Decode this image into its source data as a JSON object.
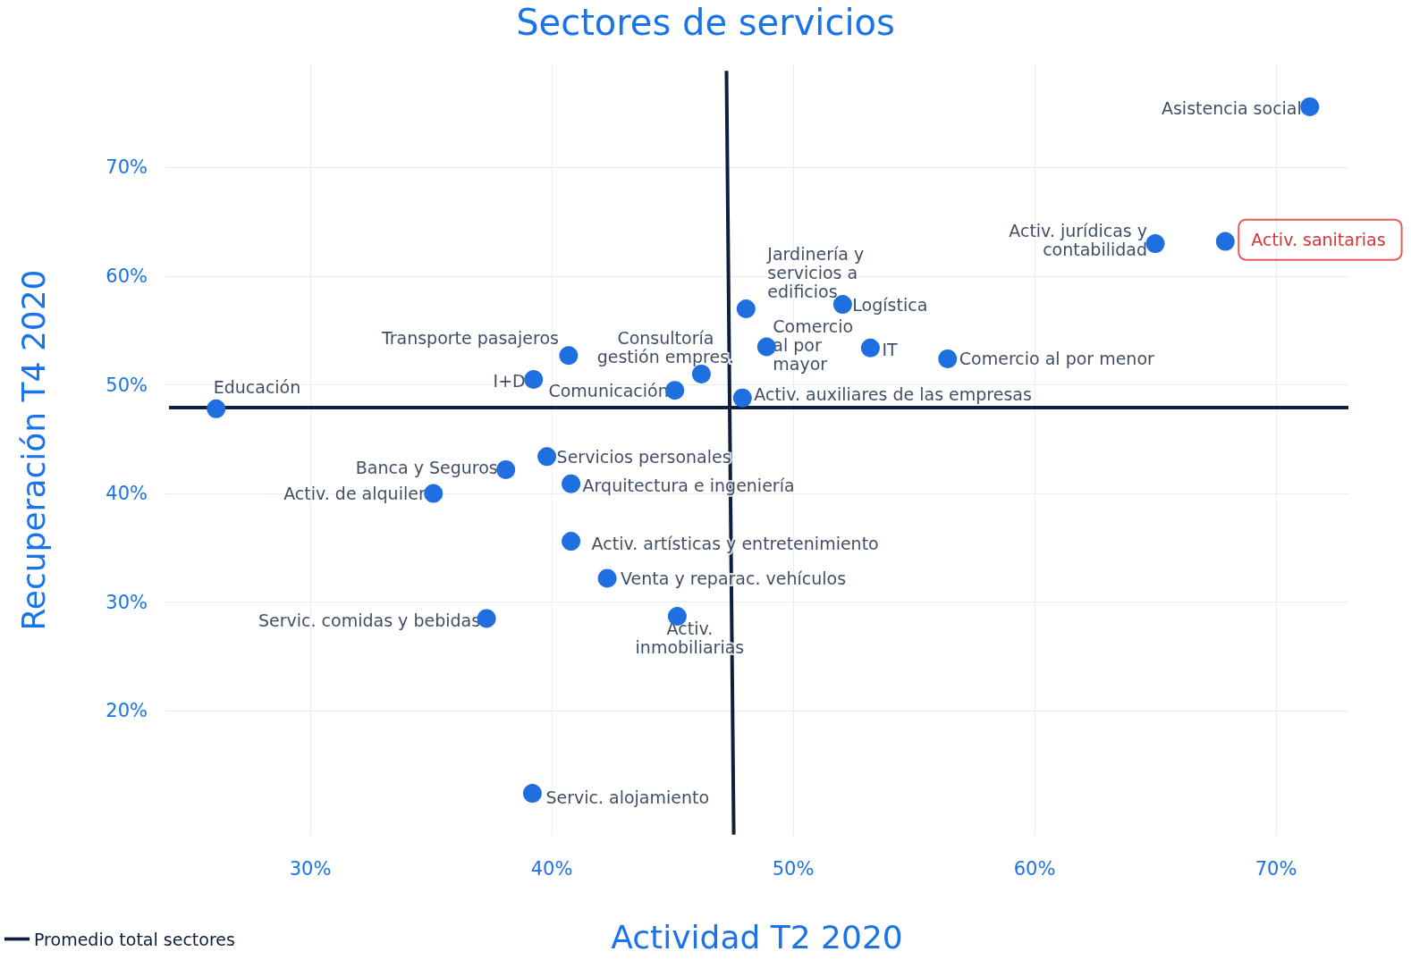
{
  "chart_data": {
    "type": "scatter",
    "title": "Sectores de servicios",
    "xlabel": "Actividad T2 2020",
    "ylabel": "Recuperación T4 2020",
    "xlim": [
      24,
      73
    ],
    "ylim": [
      8.5,
      79.5
    ],
    "xticks": [
      {
        "value": 30,
        "label": "30%"
      },
      {
        "value": 40,
        "label": "40%"
      },
      {
        "value": 50,
        "label": "50%"
      },
      {
        "value": 60,
        "label": "60%"
      },
      {
        "value": 70,
        "label": "70%"
      }
    ],
    "yticks": [
      {
        "value": 20,
        "label": "20%"
      },
      {
        "value": 30,
        "label": "30%"
      },
      {
        "value": 40,
        "label": "40%"
      },
      {
        "value": 50,
        "label": "50%"
      },
      {
        "value": 60,
        "label": "60%"
      },
      {
        "value": 70,
        "label": "70%"
      }
    ],
    "grid": true,
    "legend": "bottom left",
    "marker": "circle",
    "series": [
      {
        "color": "#1f6fe0",
        "x": [
          71.4,
          67.9,
          65.0,
          48.05,
          52.05,
          48.9,
          53.2,
          56.4,
          40.7,
          46.2,
          39.25,
          45.1,
          47.9,
          26.1,
          39.8,
          38.1,
          40.8,
          35.1,
          40.8,
          42.3,
          37.3,
          45.2,
          39.2
        ],
        "values": [
          75.6,
          63.2,
          63.0,
          57.0,
          57.4,
          53.5,
          53.4,
          52.4,
          52.7,
          51.0,
          50.5,
          49.5,
          48.8,
          47.8,
          43.4,
          42.2,
          40.9,
          40.0,
          35.6,
          32.2,
          28.5,
          28.7,
          12.4
        ]
      },
      {
        "type": "line",
        "name": "Promedio total sectores",
        "color": "#0d1f3c",
        "line_style": "solid",
        "marker": "none",
        "x": [
          24.15,
          73.0,
          null,
          47.24,
          47.54
        ],
        "values": [
          47.9,
          47.9,
          null,
          78.9,
          8.6
        ]
      }
    ],
    "annotations": [
      {
        "text": "Asistencia social",
        "x": 71.4,
        "y": 75.6
      },
      {
        "text": "Activ. sanitarias",
        "x": 67.9,
        "y": 63.2
      },
      {
        "text": "Activ. jurídicas y\ncontabilidad",
        "x": 65.0,
        "y": 63.0
      },
      {
        "text": "Jardinería y\nservicios a\nedificios",
        "x": 48.05,
        "y": 57.0
      },
      {
        "text": "Logística",
        "x": 52.05,
        "y": 57.4
      },
      {
        "text": "Comercio\nal por\nmayor",
        "x": 48.9,
        "y": 53.5
      },
      {
        "text": "IT",
        "x": 53.2,
        "y": 53.4
      },
      {
        "text": "Comercio al por menor",
        "x": 56.4,
        "y": 52.4
      },
      {
        "text": "Transporte pasajeros",
        "x": 40.7,
        "y": 52.7
      },
      {
        "text": "Consultoría\ngestión empres.",
        "x": 46.2,
        "y": 51.0
      },
      {
        "text": "I+D",
        "x": 39.25,
        "y": 50.5
      },
      {
        "text": "Comunicación",
        "x": 45.1,
        "y": 49.5
      },
      {
        "text": "Activ. auxiliares de las empresas",
        "x": 47.9,
        "y": 48.8
      },
      {
        "text": "Educación",
        "x": 26.1,
        "y": 47.8
      },
      {
        "text": "Servicios personales",
        "x": 39.8,
        "y": 43.4
      },
      {
        "text": "Banca y Seguros",
        "x": 38.1,
        "y": 42.2
      },
      {
        "text": "Arquitectura e ingeniería",
        "x": 40.8,
        "y": 40.9
      },
      {
        "text": "Activ. de alquiler",
        "x": 35.1,
        "y": 40.0
      },
      {
        "text": "Activ. artísticas y entretenimiento",
        "x": 40.8,
        "y": 35.6
      },
      {
        "text": "Venta y reparac. vehículos",
        "x": 42.3,
        "y": 32.2
      },
      {
        "text": "Servic. comidas y bebidas",
        "x": 37.3,
        "y": 28.5
      },
      {
        "text": "Activ.\ninmobiliarias",
        "x": 45.2,
        "y": 28.7
      },
      {
        "text": "Servic. alojamiento",
        "x": 39.2,
        "y": 12.4
      }
    ]
  }
}
